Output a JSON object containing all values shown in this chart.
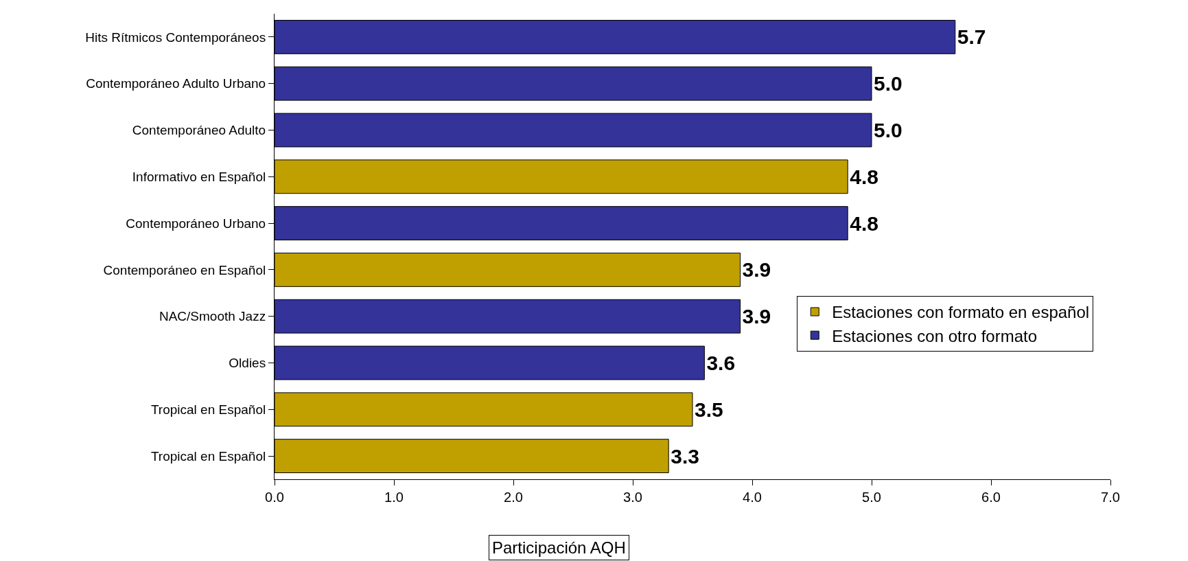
{
  "chart_data": {
    "type": "bar",
    "orientation": "horizontal",
    "xlabel": "Participación AQH",
    "categories": [
      "Hits Rítmicos Contemporáneos",
      "Contemporáneo Adulto Urbano",
      "Contemporáneo Adulto",
      "Informativo en Español",
      "Contemporáneo Urbano",
      "Contemporáneo en Español",
      "NAC/Smooth Jazz",
      "Oldies",
      "Tropical en Español",
      "Tropical en Español"
    ],
    "series": [
      {
        "name": "Estaciones con formato en español",
        "color": "#c0a000",
        "values": [
          null,
          null,
          null,
          4.8,
          null,
          3.9,
          null,
          null,
          3.5,
          3.3
        ],
        "value_labels": [
          null,
          null,
          null,
          "4.8",
          null,
          "3.9",
          null,
          null,
          "3.5",
          "3.3"
        ]
      },
      {
        "name": "Estaciones con otro formato",
        "color": "#333399",
        "values": [
          5.7,
          5.0,
          5.0,
          null,
          4.8,
          null,
          3.9,
          3.6,
          null,
          null
        ],
        "value_labels": [
          "5.7",
          "5.0",
          "5.0",
          null,
          "4.8",
          null,
          "3.9",
          "3.6",
          null,
          null
        ]
      }
    ],
    "xlim": [
      0,
      7
    ],
    "xticks": [
      {
        "value": 0,
        "label": "0.0"
      },
      {
        "value": 1,
        "label": "1.0"
      },
      {
        "value": 2,
        "label": "2.0"
      },
      {
        "value": 3,
        "label": "3.0"
      },
      {
        "value": 4,
        "label": "4.0"
      },
      {
        "value": 5,
        "label": "5.0"
      },
      {
        "value": 6,
        "label": "6.0"
      },
      {
        "value": 7,
        "label": "7.0"
      }
    ],
    "legend": "right"
  }
}
